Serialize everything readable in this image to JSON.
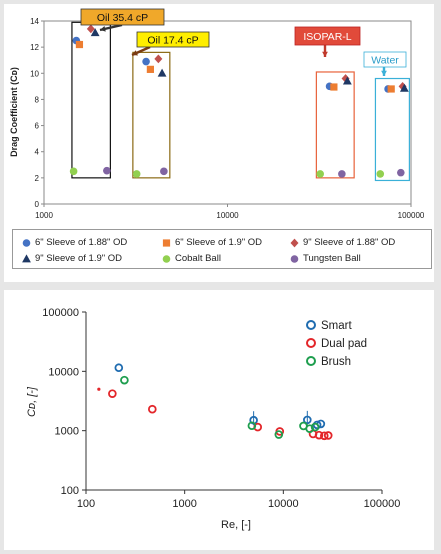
{
  "colors": {
    "sleeve6_188": "#4472c4",
    "sleeve6_19": "#ed7d31",
    "sleeve9_188": "#c0504d",
    "sleeve9_19": "#1f3864",
    "cobalt": "#92d050",
    "tungsten": "#8064a2",
    "smart": "#1f6cb0",
    "dual_pad": "#e3262a",
    "brush": "#1e9e4e"
  },
  "chart_data": [
    {
      "type": "scatter",
      "title": "",
      "xlabel": "",
      "ylabel": "Drag Coefficient (Cᴅ)",
      "xscale": "log",
      "xlim": [
        1000,
        100000
      ],
      "ylim": [
        0,
        14
      ],
      "xticks": [
        "1000",
        "10000",
        "100000"
      ],
      "yticks": [
        "0",
        "2",
        "4",
        "6",
        "8",
        "10",
        "12",
        "14"
      ],
      "legend_position": "bottom",
      "series": [
        {
          "name": "6\" Sleeve of 1.88\" OD",
          "marker": "circle",
          "color": "#4472c4",
          "points": [
            [
              1500,
              12.5
            ],
            [
              3600,
              10.9
            ],
            [
              36000,
              9.0
            ],
            [
              75000,
              8.8
            ]
          ]
        },
        {
          "name": "6\" Sleeve of 1.9\" OD",
          "marker": "square",
          "color": "#ed7d31",
          "points": [
            [
              1560,
              12.2
            ],
            [
              3800,
              10.3
            ],
            [
              38000,
              8.95
            ],
            [
              78000,
              8.8
            ]
          ]
        },
        {
          "name": "9\" Sleeve of 1.88\" OD",
          "marker": "diamond",
          "color": "#c0504d",
          "points": [
            [
              1800,
              13.4
            ],
            [
              4200,
              11.1
            ],
            [
              44000,
              9.6
            ],
            [
              90000,
              9.0
            ]
          ]
        },
        {
          "name": "9\" Sleeve of 1.9\" OD",
          "marker": "triangle",
          "color": "#1f3864",
          "points": [
            [
              1900,
              13.1
            ],
            [
              4400,
              10.0
            ],
            [
              45000,
              9.4
            ],
            [
              92000,
              8.85
            ]
          ]
        },
        {
          "name": "Cobalt Ball",
          "marker": "circle",
          "color": "#92d050",
          "points": [
            [
              1450,
              2.5
            ],
            [
              3200,
              2.3
            ],
            [
              32000,
              2.3
            ],
            [
              68000,
              2.3
            ]
          ]
        },
        {
          "name": "Tungsten Ball",
          "marker": "circle",
          "color": "#8064a2",
          "points": [
            [
              2200,
              2.55
            ],
            [
              4500,
              2.5
            ],
            [
              42000,
              2.3
            ],
            [
              88000,
              2.4
            ]
          ]
        }
      ],
      "annotations": [
        {
          "text": "Oil 35.4 cP",
          "style": "gold-callout"
        },
        {
          "text": "Oil 17.4 cP",
          "style": "yellow-callout"
        },
        {
          "text": "ISOPAR-L",
          "style": "red-callout"
        },
        {
          "text": "Water",
          "style": "cyan-callout"
        }
      ]
    },
    {
      "type": "scatter",
      "title": "",
      "xlabel": "Re, [-]",
      "ylabel": "Cᴅ, [-]",
      "xscale": "log",
      "yscale": "log",
      "xlim": [
        100,
        100000
      ],
      "ylim": [
        100,
        100000
      ],
      "xticks": [
        "100",
        "1000",
        "10000",
        "100000"
      ],
      "yticks": [
        "100",
        "1000",
        "10000",
        "100000"
      ],
      "grid": false,
      "legend_position": "top-right",
      "series": [
        {
          "name": "Smart",
          "color": "#1f6cb0",
          "points": [
            [
              215,
              11500
            ],
            [
              5000,
              1500
            ],
            [
              17500,
              1520
            ],
            [
              22000,
              1250
            ],
            [
              24000,
              1300
            ]
          ]
        },
        {
          "name": "Dual pad",
          "color": "#e3262a",
          "points": [
            [
              135,
              5000
            ],
            [
              185,
              4200
            ],
            [
              470,
              2300
            ],
            [
              5500,
              1150
            ],
            [
              9200,
              970
            ],
            [
              20000,
              880
            ],
            [
              23000,
              840
            ],
            [
              26000,
              820
            ],
            [
              28500,
              830
            ]
          ]
        },
        {
          "name": "Brush",
          "color": "#1e9e4e",
          "points": [
            [
              245,
              7100
            ],
            [
              4800,
              1210
            ],
            [
              9000,
              860
            ],
            [
              16000,
              1200
            ],
            [
              18500,
              1080
            ],
            [
              21000,
              1150
            ]
          ]
        }
      ]
    }
  ]
}
